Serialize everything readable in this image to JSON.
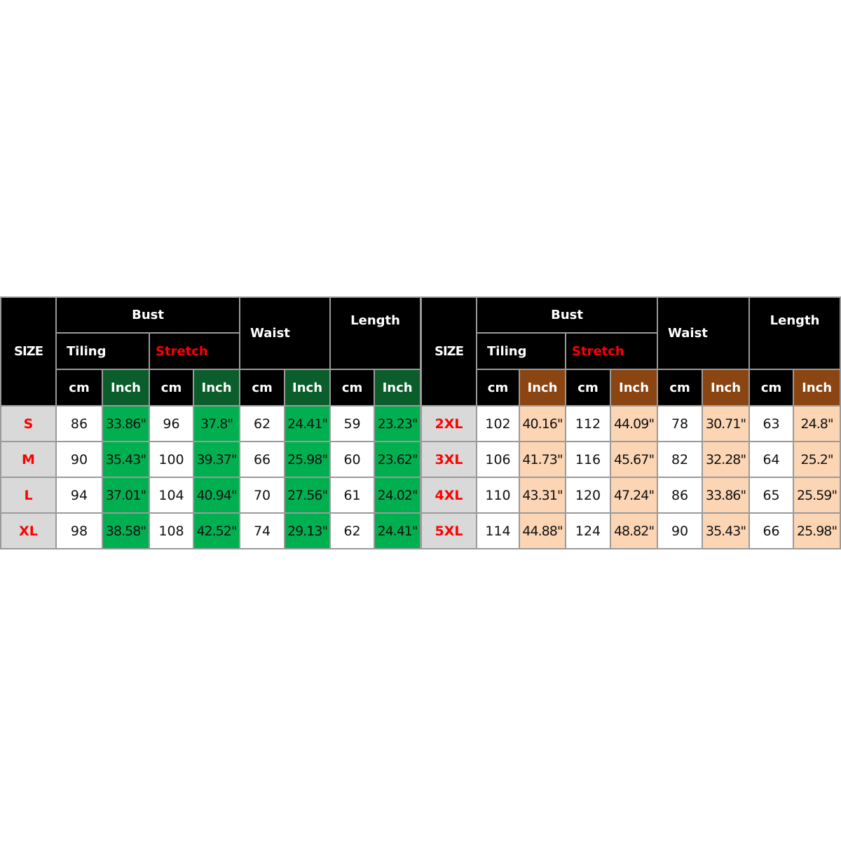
{
  "colors": {
    "header_bg": "#000000",
    "size_label": "#ff0000",
    "size_cell_bg": "#d9d9d9",
    "stretch_text": "#ff0000",
    "left_inch_header_bg": "#0b5e2c",
    "left_inch_cell_bg": "#00b050",
    "right_inch_header_bg": "#8b4512",
    "right_inch_cell_bg": "#fcd5b4"
  },
  "panels": [
    {
      "theme": "green",
      "headers": {
        "size": "SIZE",
        "bust": "Bust",
        "tiling": "Tiling",
        "stretch": "Stretch",
        "waist": "Waist",
        "length": "Length",
        "units": [
          "cm",
          "Inch",
          "cm",
          "Inch",
          "cm",
          "Inch",
          "cm",
          "Inch"
        ]
      },
      "rows": [
        {
          "size": "S",
          "values": [
            "86",
            "33.86\"",
            "96",
            "37.8\"",
            "62",
            "24.41\"",
            "59",
            "23.23\""
          ]
        },
        {
          "size": "M",
          "values": [
            "90",
            "35.43\"",
            "100",
            "39.37\"",
            "66",
            "25.98\"",
            "60",
            "23.62\""
          ]
        },
        {
          "size": "L",
          "values": [
            "94",
            "37.01\"",
            "104",
            "40.94\"",
            "70",
            "27.56\"",
            "61",
            "24.02\""
          ]
        },
        {
          "size": "XL",
          "values": [
            "98",
            "38.58\"",
            "108",
            "42.52\"",
            "74",
            "29.13\"",
            "62",
            "24.41\""
          ]
        }
      ]
    },
    {
      "theme": "brown",
      "headers": {
        "size": "SIZE",
        "bust": "Bust",
        "tiling": "Tiling",
        "stretch": "Stretch",
        "waist": "Waist",
        "length": "Length",
        "units": [
          "cm",
          "Inch",
          "cm",
          "Inch",
          "cm",
          "Inch",
          "cm",
          "Inch"
        ]
      },
      "rows": [
        {
          "size": "2XL",
          "values": [
            "102",
            "40.16\"",
            "112",
            "44.09\"",
            "78",
            "30.71\"",
            "63",
            "24.8\""
          ]
        },
        {
          "size": "3XL",
          "values": [
            "106",
            "41.73\"",
            "116",
            "45.67\"",
            "82",
            "32.28\"",
            "64",
            "25.2\""
          ]
        },
        {
          "size": "4XL",
          "values": [
            "110",
            "43.31\"",
            "120",
            "47.24\"",
            "86",
            "33.86\"",
            "65",
            "25.59\""
          ]
        },
        {
          "size": "5XL",
          "values": [
            "114",
            "44.88\"",
            "124",
            "48.82\"",
            "90",
            "35.43\"",
            "66",
            "25.98\""
          ]
        }
      ]
    }
  ]
}
